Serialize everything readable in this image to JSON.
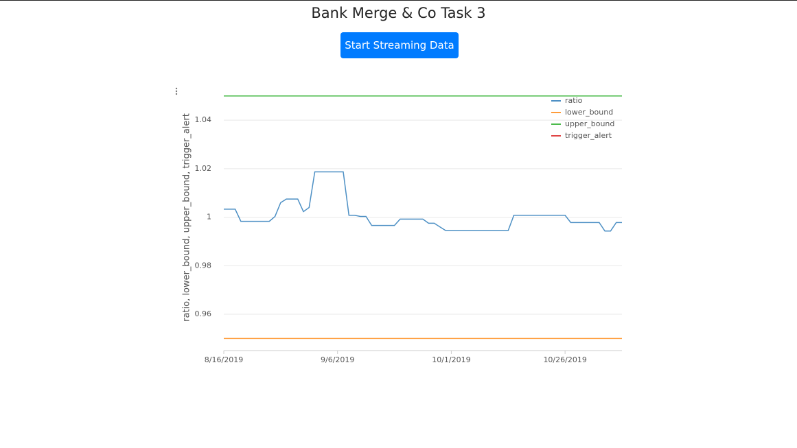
{
  "header": {
    "title": "Bank Merge & Co Task 3"
  },
  "button": {
    "label": "Start Streaming Data"
  },
  "chart_data": {
    "type": "line",
    "y_label": "ratio, lower_bound, upper_bound, trigger_alert",
    "categories": [
      "8/16/2019",
      null,
      null,
      null,
      null,
      null,
      null,
      null,
      null,
      null,
      null,
      null,
      null,
      null,
      null,
      null,
      null,
      null,
      null,
      null,
      "9/6/2019",
      null,
      null,
      null,
      null,
      null,
      null,
      null,
      null,
      null,
      null,
      null,
      null,
      null,
      null,
      null,
      null,
      null,
      null,
      null,
      "10/1/2019",
      null,
      null,
      null,
      null,
      null,
      null,
      null,
      null,
      null,
      null,
      null,
      null,
      null,
      null,
      null,
      null,
      null,
      null,
      null,
      "10/26/2019",
      null,
      null,
      null,
      null,
      null,
      null,
      null,
      null,
      null,
      null
    ],
    "ylim": [
      0.945,
      1.0525
    ],
    "yticks": [
      0.96,
      0.98,
      1,
      1.02,
      1.04
    ],
    "grid": true,
    "legend": "top-right",
    "series": [
      {
        "name": "ratio",
        "color": "#4c8fc4",
        "values": [
          1.0033,
          1.0033,
          1.0033,
          0.9983,
          0.9983,
          0.9983,
          0.9983,
          0.9983,
          0.9983,
          1.0003,
          1.006,
          1.0075,
          1.0075,
          1.0075,
          1.0023,
          1.004,
          1.0187,
          1.0187,
          1.0187,
          1.0187,
          1.0187,
          1.0187,
          1.0008,
          1.0008,
          1.0003,
          1.0003,
          0.9966,
          0.9966,
          0.9966,
          0.9966,
          0.9966,
          0.9992,
          0.9992,
          0.9992,
          0.9992,
          0.9992,
          0.9975,
          0.9975,
          0.996,
          0.9945,
          0.9945,
          0.9945,
          0.9945,
          0.9945,
          0.9945,
          0.9945,
          0.9945,
          0.9945,
          0.9945,
          0.9945,
          0.9945,
          1.0008,
          1.0008,
          1.0008,
          1.0008,
          1.0008,
          1.0008,
          1.0008,
          1.0008,
          1.0008,
          1.0008,
          0.9978,
          0.9978,
          0.9978,
          0.9978,
          0.9978,
          0.9978,
          0.9943,
          0.9943,
          0.9978,
          0.9978
        ]
      },
      {
        "name": "lower_bound",
        "color": "#ff9c3a",
        "values": [
          0.95,
          0.95,
          0.95,
          0.95,
          0.95,
          0.95,
          0.95,
          0.95,
          0.95,
          0.95,
          0.95,
          0.95,
          0.95,
          0.95,
          0.95,
          0.95,
          0.95,
          0.95,
          0.95,
          0.95,
          0.95,
          0.95,
          0.95,
          0.95,
          0.95,
          0.95,
          0.95,
          0.95,
          0.95,
          0.95,
          0.95,
          0.95,
          0.95,
          0.95,
          0.95,
          0.95,
          0.95,
          0.95,
          0.95,
          0.95,
          0.95,
          0.95,
          0.95,
          0.95,
          0.95,
          0.95,
          0.95,
          0.95,
          0.95,
          0.95,
          0.95,
          0.95,
          0.95,
          0.95,
          0.95,
          0.95,
          0.95,
          0.95,
          0.95,
          0.95,
          0.95,
          0.95,
          0.95,
          0.95,
          0.95,
          0.95,
          0.95,
          0.95,
          0.95,
          0.95,
          0.95
        ]
      },
      {
        "name": "upper_bound",
        "color": "#4cbb4c",
        "values": [
          1.05,
          1.05,
          1.05,
          1.05,
          1.05,
          1.05,
          1.05,
          1.05,
          1.05,
          1.05,
          1.05,
          1.05,
          1.05,
          1.05,
          1.05,
          1.05,
          1.05,
          1.05,
          1.05,
          1.05,
          1.05,
          1.05,
          1.05,
          1.05,
          1.05,
          1.05,
          1.05,
          1.05,
          1.05,
          1.05,
          1.05,
          1.05,
          1.05,
          1.05,
          1.05,
          1.05,
          1.05,
          1.05,
          1.05,
          1.05,
          1.05,
          1.05,
          1.05,
          1.05,
          1.05,
          1.05,
          1.05,
          1.05,
          1.05,
          1.05,
          1.05,
          1.05,
          1.05,
          1.05,
          1.05,
          1.05,
          1.05,
          1.05,
          1.05,
          1.05,
          1.05,
          1.05,
          1.05,
          1.05,
          1.05,
          1.05,
          1.05,
          1.05,
          1.05,
          1.05,
          1.05
        ]
      },
      {
        "name": "trigger_alert",
        "color": "#e04545",
        "values": [
          null,
          null,
          null,
          null,
          null,
          null,
          null,
          null,
          null,
          null,
          null,
          null,
          null,
          null,
          null,
          null,
          null,
          null,
          null,
          null,
          null,
          null,
          null,
          null,
          null,
          null,
          null,
          null,
          null,
          null,
          null,
          null,
          null,
          null,
          null,
          null,
          null,
          null,
          null,
          null,
          null,
          null,
          null,
          null,
          null,
          null,
          null,
          null,
          null,
          null,
          null,
          null,
          null,
          null,
          null,
          null,
          null,
          null,
          null,
          null,
          null,
          null,
          null,
          null,
          null,
          null,
          null,
          null,
          null,
          null,
          null
        ]
      }
    ]
  }
}
